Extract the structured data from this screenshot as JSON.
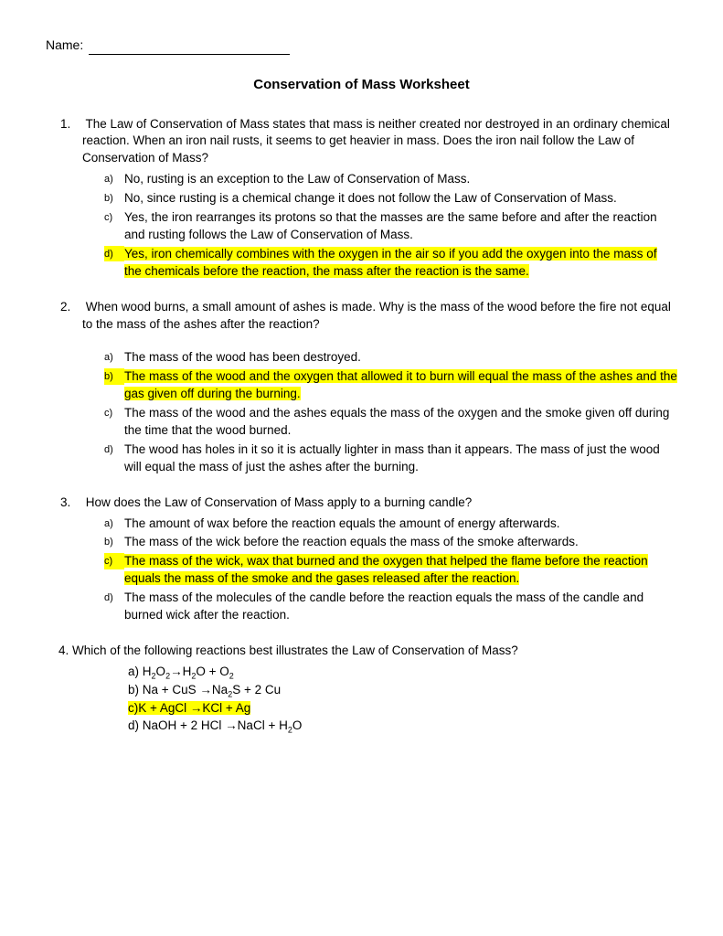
{
  "name_label": "Name:",
  "title": "Conservation of Mass Worksheet",
  "highlight_color": "#ffff00",
  "background_color": "#ffffff",
  "text_color": "#000000",
  "questions": [
    {
      "num": "1.",
      "text": "The Law of Conservation of Mass states that mass is neither created nor destroyed in an ordinary chemical reaction. When an iron nail rusts, it seems to get heavier in mass. Does the iron nail follow the Law of Conservation of Mass?",
      "options": [
        {
          "label": "a)",
          "text": "No, rusting is an exception to the Law of Conservation of Mass.",
          "highlighted": false
        },
        {
          "label": "b)",
          "text": "No, since rusting is a chemical change it does not follow the Law of Conservation of Mass.",
          "highlighted": false
        },
        {
          "label": "c)",
          "text": "Yes, the iron rearranges its protons so that the masses are the same before and after the reaction and rusting follows the Law of Conservation of Mass.",
          "highlighted": false
        },
        {
          "label": "d)",
          "text": "Yes, iron chemically combines with the oxygen in the air so if you add the oxygen into the mass of the chemicals before the reaction, the mass after the reaction is the same.",
          "highlighted": true
        }
      ]
    },
    {
      "num": "2.",
      "text": "When wood burns, a small amount of ashes is made. Why is the mass of the wood before the fire not equal to the mass of the ashes after the reaction?",
      "options": [
        {
          "label": "a)",
          "text": "The mass of the wood has been destroyed.",
          "highlighted": false
        },
        {
          "label": "b)",
          "text": "The mass of the wood and the oxygen that allowed it to burn will equal the mass of the ashes and the gas given off during the burning.",
          "highlighted": true
        },
        {
          "label": "c)",
          "text": "The mass of the wood and the ashes equals the mass of the oxygen and the smoke given off during the time that the wood burned.",
          "highlighted": false
        },
        {
          "label": "d)",
          "text": "The wood has holes in it so it is actually lighter in mass than it appears. The mass of just the wood will equal the mass of just the ashes after the burning.",
          "highlighted": false
        }
      ]
    },
    {
      "num": "3.",
      "text": "How does the Law of Conservation of Mass apply to a burning candle?",
      "options": [
        {
          "label": "a)",
          "text": "The amount of wax before the reaction equals the amount of energy afterwards.",
          "highlighted": false
        },
        {
          "label": "b)",
          "text": "The mass of the wick before the reaction equals the mass of the smoke afterwards.",
          "highlighted": false
        },
        {
          "label": "c)",
          "text": "The mass of the wick, wax that burned and the oxygen that helped the flame before the reaction equals the mass of the smoke and the gases released after the reaction.",
          "highlighted": true
        },
        {
          "label": "d)",
          "text": "The mass of the molecules of the candle before the reaction equals the mass of the candle and burned wick after the reaction.",
          "highlighted": false
        }
      ]
    }
  ],
  "q4": {
    "num": "4.",
    "text": "Which of the following reactions best illustrates the Law of Conservation of Mass?",
    "options": [
      {
        "label": "a)",
        "formula_html": "H<sub>2</sub>O<sub>2</sub>→H<sub>2</sub>O + O<sub>2</sub>",
        "highlighted": false
      },
      {
        "label": "b)",
        "formula_html": "Na + CuS →Na<sub>2</sub>S + 2 Cu",
        "highlighted": false
      },
      {
        "label": "c)",
        "formula_html": "K + AgCl →KCl + Ag",
        "highlighted": true
      },
      {
        "label": "d)",
        "formula_html": "NaOH + 2 HCl →NaCl + H<sub>2</sub>O",
        "highlighted": false
      }
    ]
  }
}
